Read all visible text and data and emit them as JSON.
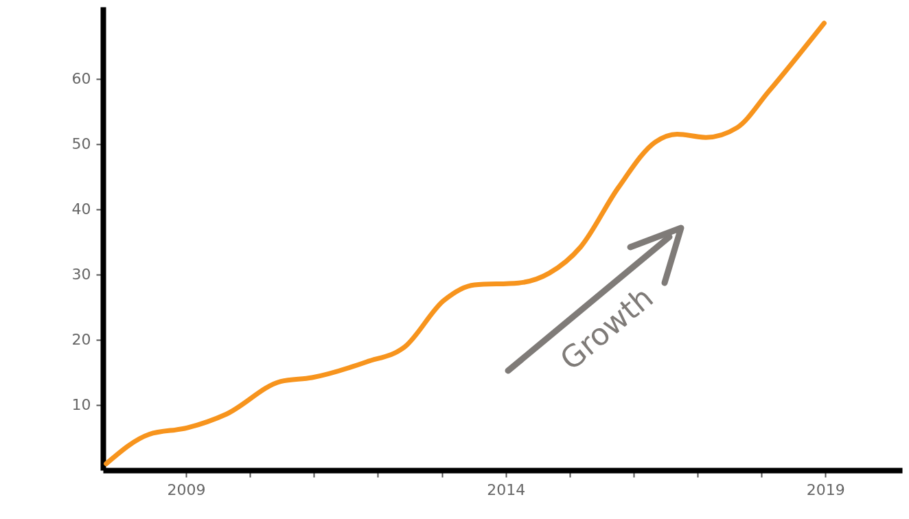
{
  "chart_data": {
    "type": "line",
    "x": [
      2007.75,
      2008.42,
      2009.02,
      2009.63,
      2010.48,
      2010.97,
      2011.82,
      2012.42,
      2013.03,
      2013.51,
      2014.2,
      2014.68,
      2015.17,
      2015.76,
      2016.34,
      2016.68,
      2017.13,
      2017.62,
      2018.11,
      2018.98
    ],
    "series": [
      {
        "color": "#f7941d",
        "values": [
          1,
          5.5,
          6.5,
          8.6,
          13.6,
          14.2,
          16.6,
          18.9,
          26,
          28.4,
          28.7,
          30.2,
          34.2,
          43.3,
          50.3,
          51.5,
          51,
          52.5,
          58,
          68.5
        ]
      }
    ],
    "xlim": [
      2007.7,
      2020.2
    ],
    "ylim": [
      0,
      71
    ],
    "xticks": [
      2009,
      {
        "value": 2010,
        "label": null
      },
      {
        "value": 2011,
        "label": null
      },
      {
        "value": 2012,
        "label": null
      },
      {
        "value": 2013,
        "label": null
      },
      2014,
      {
        "value": 2015,
        "label": null
      },
      {
        "value": 2016,
        "label": null
      },
      {
        "value": 2017,
        "label": null
      },
      {
        "value": 2018,
        "label": null
      },
      2019
    ],
    "yticks": [
      10,
      20,
      30,
      40,
      50,
      60
    ],
    "annotations": [
      "Growth"
    ],
    "marker": "none",
    "line_style": "solid"
  }
}
